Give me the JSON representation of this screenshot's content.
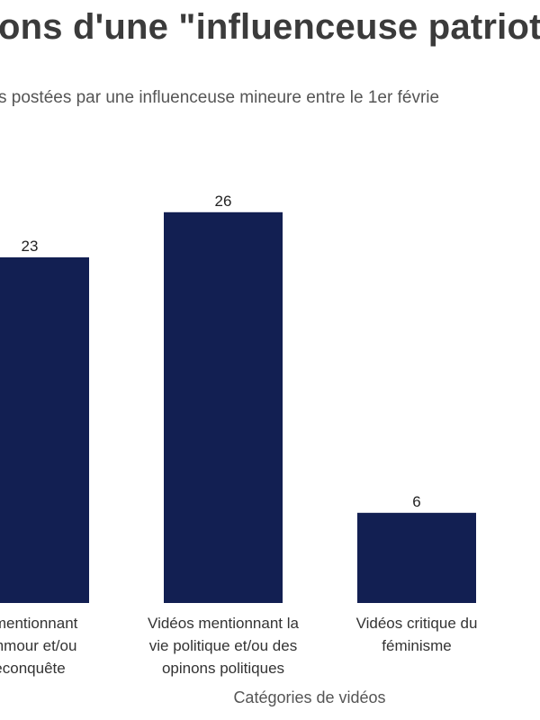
{
  "chart_data": {
    "type": "bar",
    "title": "ons d'une \"influenceuse patriote",
    "subtitle": "s postées par une influenceuse mineure entre le 1er févrie",
    "xlabel": "Catégories de vidéos",
    "ylabel": "",
    "categories": [
      [
        "s mentionnant",
        "emmour et/ou",
        "econquête"
      ],
      [
        "Vidéos mentionnant la",
        "vie politique et/ou des",
        "opinons politiques"
      ],
      [
        "Vidéos critique du",
        "féminisme"
      ]
    ],
    "values": [
      23,
      26,
      6
    ],
    "bar_color": "#121f52",
    "grid": false,
    "legend": "none"
  }
}
